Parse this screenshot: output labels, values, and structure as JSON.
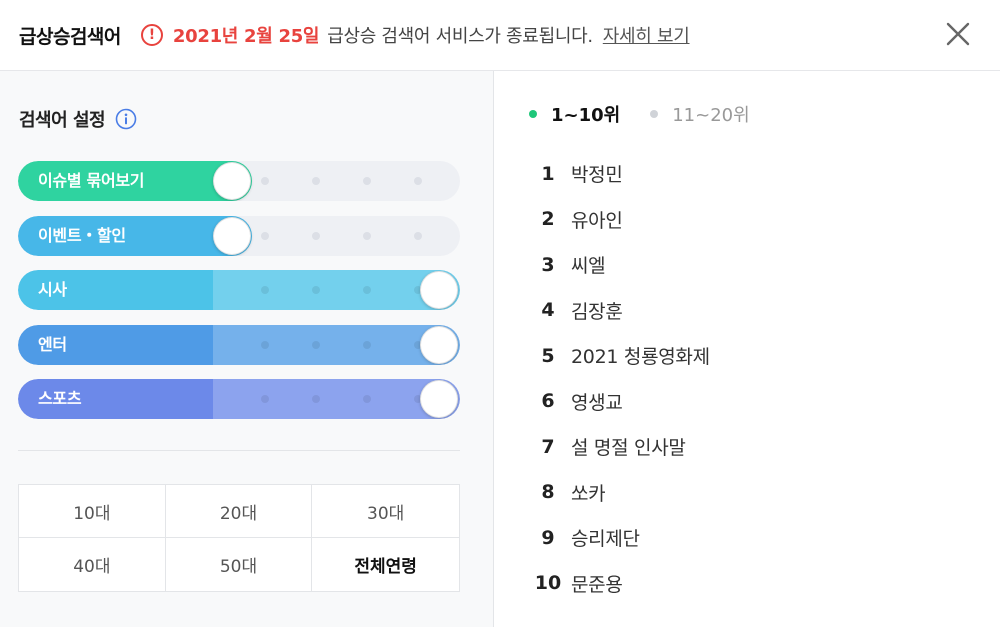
{
  "header": {
    "title": "급상승검색어",
    "notice_icon": "!",
    "notice_date": "2021년 2월 25일",
    "notice_text": "급상승 검색어 서비스가 종료됩니다.",
    "notice_link": "자세히 보기"
  },
  "settings": {
    "title": "검색어 설정",
    "sliders": [
      {
        "label": "이슈별 묶어보기",
        "color": "#2fd3a0",
        "level": 0
      },
      {
        "label": "이벤트・할인",
        "color": "#47b7e8",
        "level": 0
      },
      {
        "label": "시사",
        "color": "#4cc3e8",
        "level": 4
      },
      {
        "label": "엔터",
        "color": "#4f9be6",
        "level": 4
      },
      {
        "label": "스포츠",
        "color": "#6c89e9",
        "level": 4
      }
    ],
    "slider_max_level": 4,
    "ages": [
      {
        "label": "10대",
        "selected": false
      },
      {
        "label": "20대",
        "selected": false
      },
      {
        "label": "30대",
        "selected": false
      },
      {
        "label": "40대",
        "selected": false
      },
      {
        "label": "50대",
        "selected": false
      },
      {
        "label": "전체연령",
        "selected": true
      }
    ]
  },
  "ranking": {
    "tabs": [
      {
        "label": "1~10위",
        "active": true
      },
      {
        "label": "11~20위",
        "active": false
      }
    ],
    "items": [
      {
        "rank": "1",
        "keyword": "박정민"
      },
      {
        "rank": "2",
        "keyword": "유아인"
      },
      {
        "rank": "3",
        "keyword": "씨엘"
      },
      {
        "rank": "4",
        "keyword": "김장훈"
      },
      {
        "rank": "5",
        "keyword": "2021 청룡영화제"
      },
      {
        "rank": "6",
        "keyword": "영생교"
      },
      {
        "rank": "7",
        "keyword": "설 명절 인사말"
      },
      {
        "rank": "8",
        "keyword": "쏘카"
      },
      {
        "rank": "9",
        "keyword": "승리제단"
      },
      {
        "rank": "10",
        "keyword": "문준용"
      }
    ]
  },
  "icons": {
    "close": "close-icon",
    "info": "info-icon",
    "notice": "exclamation-icon"
  }
}
